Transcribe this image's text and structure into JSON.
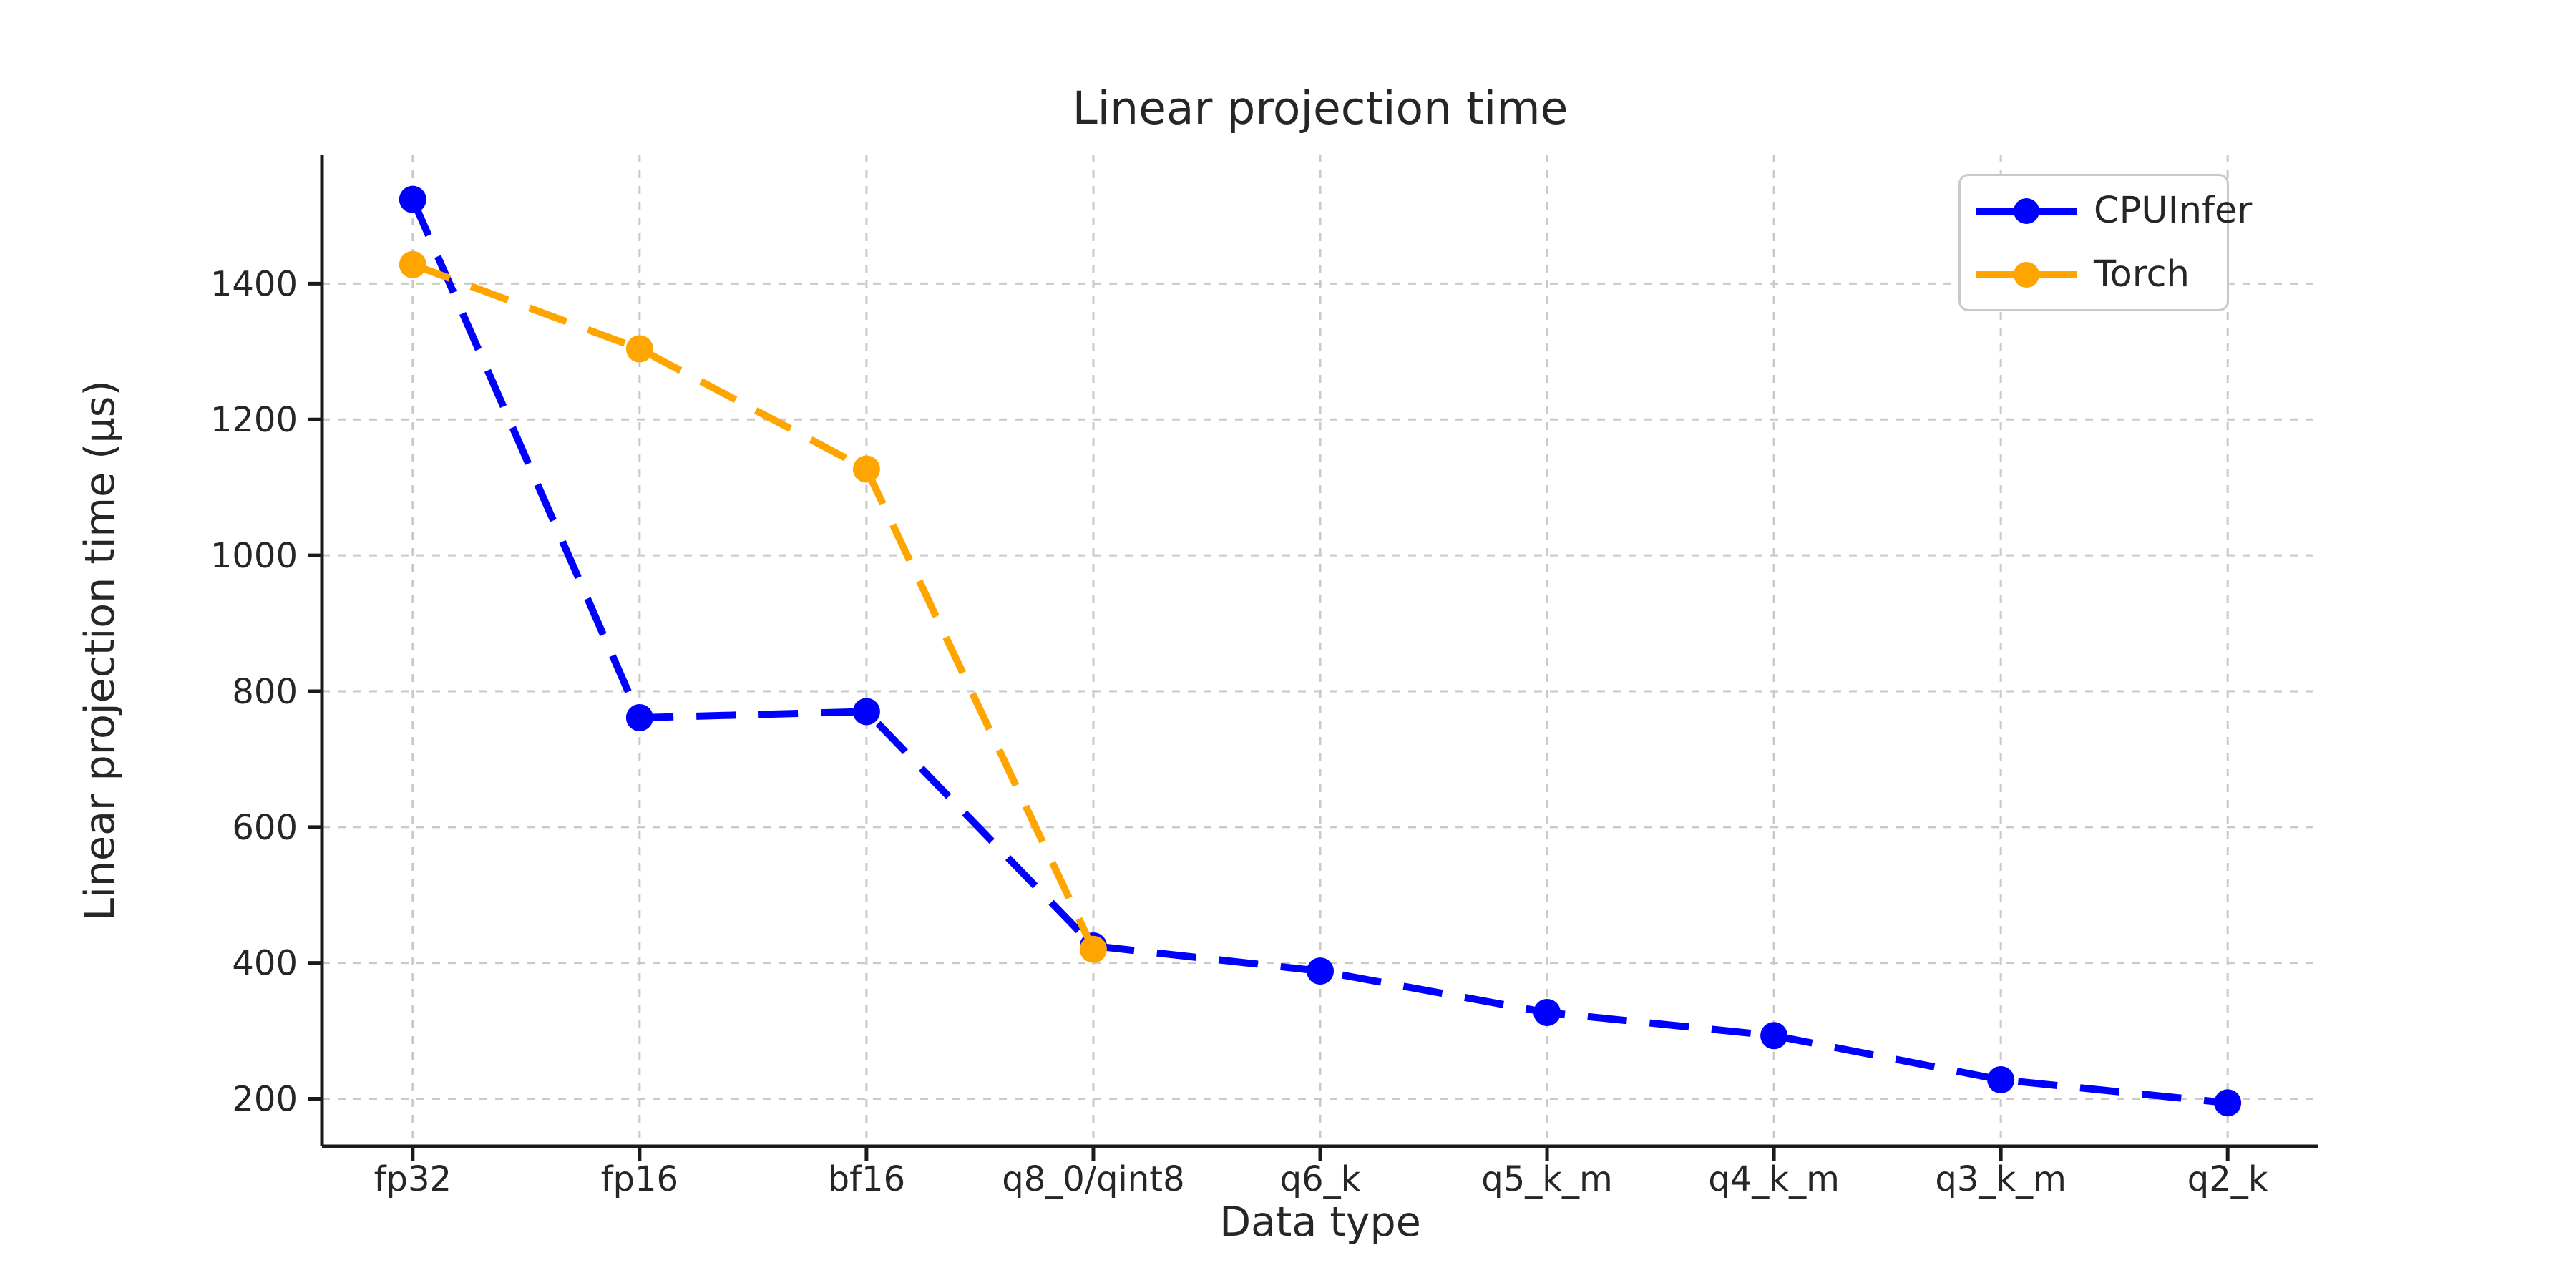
{
  "chart_data": {
    "type": "line",
    "title": "Linear projection time",
    "xlabel": "Data type",
    "ylabel": "Linear projection time (µs)",
    "categories": [
      "fp32",
      "fp16",
      "bf16",
      "q8_0/qint8",
      "q6_k",
      "q5_k_m",
      "q4_k_m",
      "q3_k_m",
      "q2_k"
    ],
    "series": [
      {
        "name": "CPUInfer",
        "color": "#0000ff",
        "linestyle": "dashed",
        "marker": "circle",
        "values": [
          1524,
          761,
          770,
          425,
          388,
          327,
          293,
          228,
          194
        ]
      },
      {
        "name": "Torch",
        "color": "#ffa500",
        "linestyle": "dashed",
        "marker": "circle",
        "values": [
          1428,
          1304,
          1127,
          420
        ]
      }
    ],
    "yticks": [
      200,
      400,
      600,
      800,
      1000,
      1200,
      1400
    ],
    "ylim": [
      130,
      1590
    ],
    "grid": true,
    "legend_position": "upper right",
    "colors": {
      "text": "#262626",
      "grid": "#c9c9c9",
      "spine": "#1a1a1a",
      "background": "#ffffff",
      "legend_border": "#c9c9c9"
    }
  }
}
